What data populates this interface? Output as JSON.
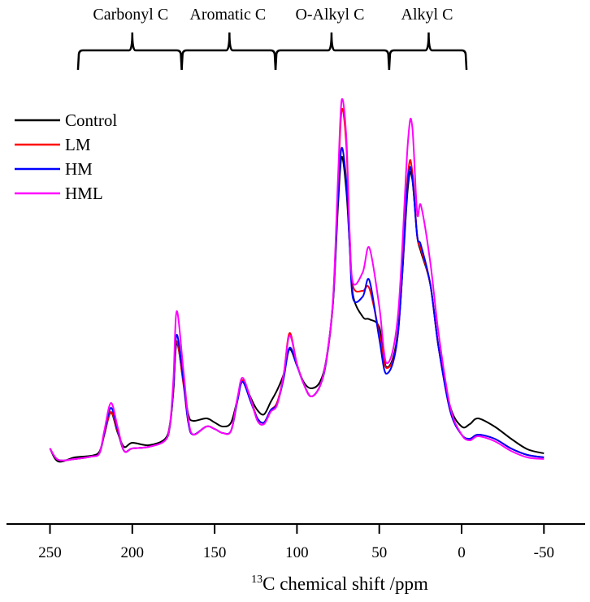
{
  "chart_data": {
    "type": "line",
    "title": "",
    "xlabel_sup": "13",
    "xlabel": "C chemical shift /ppm",
    "ylabel": "",
    "xlim": [
      250,
      -50
    ],
    "ylim": [
      0,
      90
    ],
    "grid": false,
    "legend_position": "top-left",
    "x_ticks": [
      250,
      200,
      150,
      100,
      50,
      0,
      -50
    ],
    "x_tick_labels": [
      "250",
      "200",
      "150",
      "100",
      "50",
      "0",
      "-50"
    ],
    "regions": [
      {
        "label": "Carbonyl C",
        "from": 233,
        "to": 170,
        "tip": 200
      },
      {
        "label": "Aromatic C",
        "from": 170,
        "to": 113,
        "tip": 141
      },
      {
        "label": "O-Alkyl C",
        "from": 113,
        "to": 44,
        "tip": 79
      },
      {
        "label": "Alkyl C",
        "from": 44,
        "to": -3,
        "tip": 20
      }
    ],
    "x": [
      250,
      245,
      235,
      225,
      220,
      217,
      213,
      209,
      205,
      200,
      190,
      180,
      177,
      175,
      173,
      169,
      166,
      163,
      155,
      150,
      145,
      140,
      136,
      133,
      128,
      124,
      120,
      116,
      112,
      108,
      104.5,
      100,
      96,
      91.5,
      86,
      82,
      78,
      75,
      72.8,
      70,
      68,
      66,
      60,
      56,
      50,
      45.5,
      38.6,
      32.7,
      30,
      27,
      24.7,
      19,
      14,
      7,
      0,
      -5,
      -10,
      -20,
      -30,
      -40,
      -50
    ],
    "series": [
      {
        "name": "Control",
        "color": "#000000",
        "values": [
          3.6,
          0.4,
          1.4,
          1.8,
          2.8,
          7,
          12.4,
          7.6,
          4,
          5,
          4.4,
          6,
          10,
          18,
          29.6,
          20,
          12,
          10.4,
          11,
          10,
          9,
          10,
          16,
          20.4,
          16,
          13,
          12,
          15,
          18,
          22,
          28,
          24,
          20,
          18.4,
          20,
          26,
          40,
          64,
          75.4,
          67,
          54,
          41.4,
          36,
          35.4,
          33.4,
          23.6,
          32.6,
          67.4,
          70,
          56,
          52,
          44,
          28.6,
          14,
          9,
          9.6,
          11,
          9,
          6,
          3.4,
          2.4
        ]
      },
      {
        "name": "LM",
        "color": "#ff0000",
        "values": [
          3.6,
          0.8,
          1,
          1.6,
          2.4,
          7,
          12.6,
          8,
          3,
          3.6,
          4,
          5.6,
          9.6,
          18.4,
          30,
          19.6,
          10,
          7,
          9,
          8.4,
          7.4,
          8,
          16,
          20.4,
          15.6,
          11,
          10,
          13,
          15,
          22,
          32,
          24.4,
          19.6,
          16.4,
          19,
          25.6,
          40.4,
          69,
          87,
          78,
          56,
          43.6,
          42.4,
          43,
          32,
          23.4,
          32,
          70.4,
          72,
          56,
          52.6,
          44,
          28.6,
          13,
          7,
          6,
          7,
          6,
          3.6,
          2,
          1.4
        ]
      },
      {
        "name": "HM",
        "color": "#0000ff",
        "values": [
          3.6,
          0.8,
          1,
          1.6,
          2.4,
          7.4,
          13.6,
          8.4,
          3,
          3.6,
          4,
          5.6,
          9.6,
          19,
          31.6,
          20.4,
          10,
          7,
          9,
          8.4,
          7.4,
          8,
          15.6,
          20,
          15,
          11,
          10,
          13,
          14.6,
          21,
          28.4,
          24,
          19.6,
          16.4,
          19,
          25.6,
          40.4,
          66,
          77.6,
          69,
          54,
          40.6,
          41,
          45,
          30.6,
          22,
          32,
          69,
          70.4,
          56,
          53.6,
          44,
          28.6,
          13,
          7,
          6,
          7,
          6,
          3.6,
          2,
          1.4
        ]
      },
      {
        "name": "HML",
        "color": "#ff00ff",
        "values": [
          3.6,
          0.8,
          1,
          1.6,
          2.4,
          8,
          14.8,
          9,
          3,
          3.6,
          4,
          5.6,
          10,
          21,
          37.4,
          23,
          11,
          7,
          9,
          8.4,
          7.4,
          8,
          16.4,
          21,
          15.6,
          10.4,
          9.6,
          12.6,
          14.4,
          22,
          31.4,
          24.4,
          19.6,
          16.4,
          19,
          26,
          41,
          71,
          89.4,
          80,
          57,
          44.4,
          47,
          53,
          38.6,
          24.6,
          36.6,
          78.4,
          83,
          61.6,
          63.4,
          49.4,
          32,
          14,
          7,
          5.6,
          6.6,
          5.4,
          3,
          1.4,
          1
        ]
      }
    ]
  }
}
